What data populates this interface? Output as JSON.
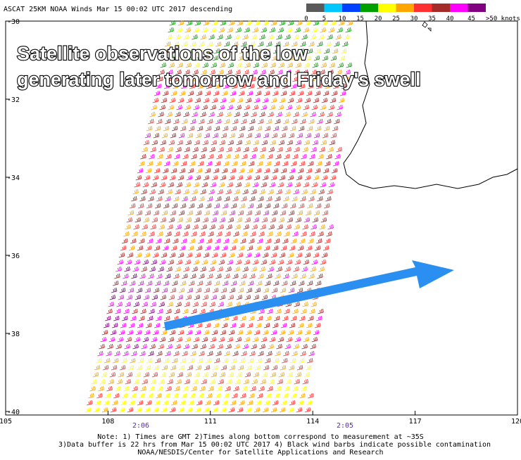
{
  "header": {
    "title": "ASCAT 25KM NOAA Winds  Mar 15 00:02 UTC 2017 descending"
  },
  "legend": {
    "labels": [
      "0",
      "5",
      "10",
      "15",
      "20",
      "25",
      "30",
      "35",
      "40",
      ">50 knots"
    ],
    "extra_label": "45",
    "colors": [
      "#5a5a5a",
      "#00c8ff",
      "#0040ff",
      "#00a000",
      "#ffff00",
      "#ffa500",
      "#ff3030",
      "#a52a2a",
      "#ff00ff",
      "#800080"
    ]
  },
  "overlay": {
    "lines": [
      "Satellite observations of the low",
      "generating later tomorrow and Friday's swell"
    ]
  },
  "map": {
    "lonlim": [
      105,
      120
    ],
    "latlim": [
      -40,
      -30
    ],
    "lon_ticks": [
      105,
      108,
      111,
      114,
      117,
      120
    ],
    "lat_ticks": [
      -30,
      -32,
      -34,
      -36,
      -38,
      -40
    ],
    "pass_times": [
      "2:06",
      "2:05"
    ]
  },
  "notes": [
    "Note: 1) Times are GMT 2)Times along bottom correspond to measurement at ~35S",
    "3)Data buffer is 22 hrs from Mar 15 00:02 UTC 2017 4) Black wind barbs indicate possible contamination",
    "NOAA/NESDIS/Center for Satellite Applications and Research"
  ]
}
